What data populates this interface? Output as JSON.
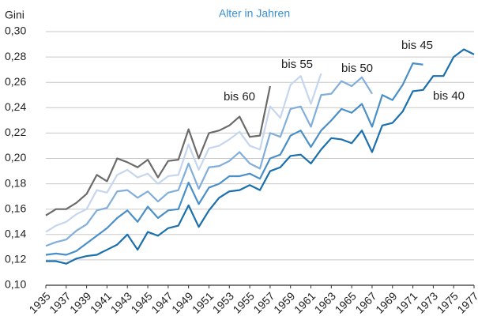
{
  "chart_data": {
    "type": "line",
    "title": "Alter in Jahren",
    "y_label": "Gini",
    "x": [
      1935,
      1936,
      1937,
      1938,
      1939,
      1940,
      1941,
      1942,
      1943,
      1944,
      1945,
      1946,
      1947,
      1948,
      1949,
      1950,
      1951,
      1952,
      1953,
      1954,
      1955,
      1956,
      1957,
      1958,
      1959,
      1960,
      1961,
      1962,
      1963,
      1964,
      1965,
      1966,
      1967,
      1968,
      1969,
      1970,
      1971,
      1972,
      1973,
      1974,
      1975,
      1976,
      1977
    ],
    "xlim": [
      1935,
      1977
    ],
    "xticks": [
      1935,
      1937,
      1939,
      1941,
      1943,
      1945,
      1947,
      1949,
      1951,
      1953,
      1955,
      1957,
      1959,
      1961,
      1963,
      1965,
      1967,
      1969,
      1971,
      1973,
      1975,
      1977
    ],
    "ylim": [
      0.1,
      0.3
    ],
    "yticks": [
      {
        "value": 0.1,
        "label": "0,10"
      },
      {
        "value": 0.12,
        "label": "0,12"
      },
      {
        "value": 0.14,
        "label": "0,14"
      },
      {
        "value": 0.16,
        "label": "0,16"
      },
      {
        "value": 0.18,
        "label": "0,18"
      },
      {
        "value": 0.2,
        "label": "0,20"
      },
      {
        "value": 0.22,
        "label": "0,22"
      },
      {
        "value": 0.24,
        "label": "0,24"
      },
      {
        "value": 0.26,
        "label": "0,26"
      },
      {
        "value": 0.28,
        "label": "0,28"
      },
      {
        "value": 0.3,
        "label": "0,30"
      }
    ],
    "grid": true,
    "series": [
      {
        "name": "bis 40",
        "color": "#1a6fad",
        "values": [
          0.119,
          0.119,
          0.117,
          0.121,
          0.123,
          0.124,
          0.128,
          0.132,
          0.14,
          0.128,
          0.142,
          0.139,
          0.145,
          0.147,
          0.163,
          0.146,
          0.159,
          0.169,
          0.174,
          0.175,
          0.179,
          0.175,
          0.19,
          0.193,
          0.202,
          0.203,
          0.196,
          0.207,
          0.216,
          0.215,
          0.212,
          0.222,
          0.205,
          0.226,
          0.228,
          0.237,
          0.253,
          0.254,
          0.265,
          0.265,
          0.28,
          0.286,
          0.282
        ]
      },
      {
        "name": "bis 45",
        "color": "#4a8fc8",
        "values": [
          0.124,
          0.125,
          0.124,
          0.127,
          0.133,
          0.139,
          0.145,
          0.153,
          0.159,
          0.15,
          0.162,
          0.153,
          0.159,
          0.16,
          0.181,
          0.164,
          0.177,
          0.18,
          0.186,
          0.186,
          0.188,
          0.184,
          0.2,
          0.203,
          0.218,
          0.222,
          0.209,
          0.222,
          0.23,
          0.239,
          0.236,
          0.243,
          0.225,
          0.25,
          0.246,
          0.258,
          0.275,
          0.274,
          null,
          null,
          null,
          null,
          null
        ]
      },
      {
        "name": "bis 50",
        "color": "#82aedb",
        "values": [
          0.131,
          0.134,
          0.136,
          0.143,
          0.148,
          0.159,
          0.161,
          0.174,
          0.175,
          0.169,
          0.174,
          0.166,
          0.173,
          0.175,
          0.196,
          0.176,
          0.193,
          0.194,
          0.198,
          0.205,
          0.196,
          0.192,
          0.22,
          0.217,
          0.239,
          0.241,
          0.225,
          0.25,
          0.251,
          0.261,
          0.257,
          0.264,
          0.251,
          null,
          null,
          null,
          null,
          null,
          null,
          null,
          null,
          null,
          null
        ]
      },
      {
        "name": "bis 55",
        "color": "#c5d6ee",
        "values": [
          0.142,
          0.147,
          0.15,
          0.156,
          0.16,
          0.175,
          0.173,
          0.187,
          0.191,
          0.185,
          0.188,
          0.18,
          0.186,
          0.187,
          0.211,
          0.191,
          0.208,
          0.21,
          0.215,
          0.221,
          0.21,
          0.207,
          0.241,
          0.232,
          0.258,
          0.265,
          0.243,
          0.267,
          null,
          null,
          null,
          null,
          null,
          null,
          null,
          null,
          null,
          null,
          null,
          null,
          null,
          null,
          null
        ]
      },
      {
        "name": "bis 60",
        "color": "#6b6b6b",
        "values": [
          0.155,
          0.16,
          0.16,
          0.165,
          0.172,
          0.187,
          0.182,
          0.2,
          0.197,
          0.193,
          0.199,
          0.185,
          0.198,
          0.199,
          0.223,
          0.2,
          0.22,
          0.222,
          0.226,
          0.233,
          0.217,
          0.218,
          0.257,
          null,
          null,
          null,
          null,
          null,
          null,
          null,
          null,
          null,
          null,
          null,
          null,
          null,
          null,
          null,
          null,
          null,
          null,
          null,
          null
        ]
      }
    ]
  }
}
